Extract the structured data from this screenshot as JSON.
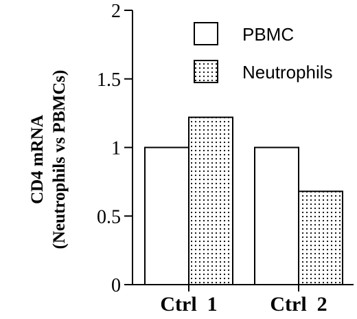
{
  "chart_data": {
    "type": "bar",
    "categories": [
      "Ctrl  1",
      "Ctrl  2"
    ],
    "series": [
      {
        "name": "PBMC",
        "values": [
          1.0,
          1.0
        ],
        "pattern": "white"
      },
      {
        "name": "Neutrophils",
        "values": [
          1.22,
          0.68
        ],
        "pattern": "dotted"
      }
    ],
    "ylabel": [
      "CD4 mRNA",
      "(Neutrophils vs PBMCs)"
    ],
    "ylim": [
      0,
      2
    ],
    "yticks": [
      "0",
      "0.5",
      "1",
      "1.5",
      "2"
    ],
    "grid": false,
    "legend_position": "top-right"
  }
}
